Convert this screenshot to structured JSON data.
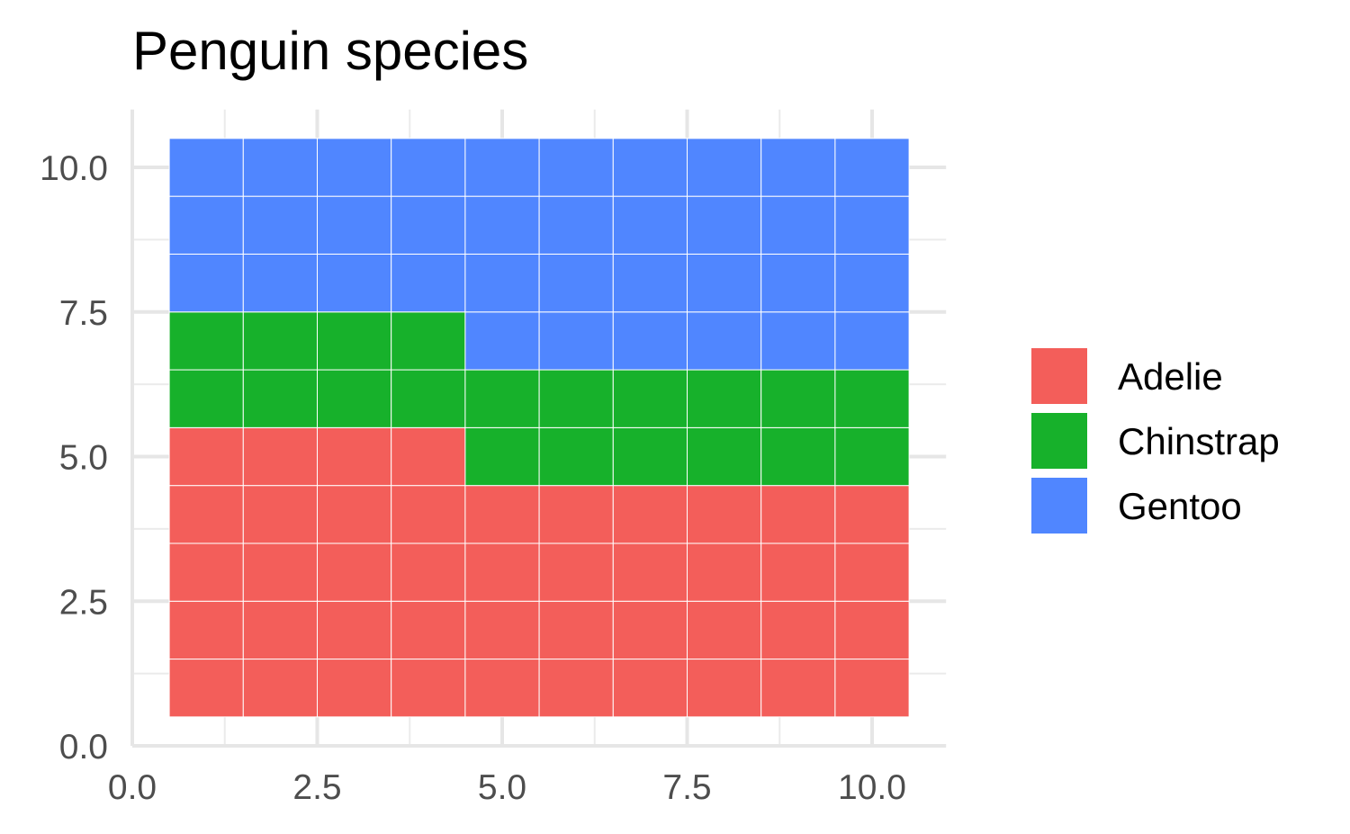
{
  "chart_data": {
    "type": "heatmap",
    "subtype": "waffle",
    "title": "Penguin species",
    "xlabel": "",
    "ylabel": "",
    "xlim": [
      0,
      11
    ],
    "ylim": [
      0,
      11
    ],
    "x_ticks": [
      "0.0",
      "2.5",
      "5.0",
      "7.5",
      "10.0"
    ],
    "y_ticks": [
      "0.0",
      "2.5",
      "5.0",
      "7.5",
      "10.0"
    ],
    "x_tick_values": [
      0,
      2.5,
      5,
      7.5,
      10
    ],
    "y_tick_values": [
      0,
      2.5,
      5,
      7.5,
      10
    ],
    "grid": true,
    "legend_position": "right",
    "grid_size": [
      10,
      10
    ],
    "colors": {
      "Adelie": "#F35E5A",
      "Chinstrap": "#17B12B",
      "Gentoo": "#5086FF"
    },
    "series": [
      {
        "name": "Adelie",
        "count": 44,
        "color": "#F35E5A"
      },
      {
        "name": "Chinstrap",
        "count": 20,
        "color": "#17B12B"
      },
      {
        "name": "Gentoo",
        "count": 36,
        "color": "#5086FF"
      }
    ],
    "columns": [
      {
        "x": 1,
        "tiles": [
          "Adelie",
          "Adelie",
          "Adelie",
          "Adelie",
          "Adelie",
          "Chinstrap",
          "Chinstrap",
          "Gentoo",
          "Gentoo",
          "Gentoo"
        ]
      },
      {
        "x": 2,
        "tiles": [
          "Adelie",
          "Adelie",
          "Adelie",
          "Adelie",
          "Adelie",
          "Chinstrap",
          "Chinstrap",
          "Gentoo",
          "Gentoo",
          "Gentoo"
        ]
      },
      {
        "x": 3,
        "tiles": [
          "Adelie",
          "Adelie",
          "Adelie",
          "Adelie",
          "Adelie",
          "Chinstrap",
          "Chinstrap",
          "Gentoo",
          "Gentoo",
          "Gentoo"
        ]
      },
      {
        "x": 4,
        "tiles": [
          "Adelie",
          "Adelie",
          "Adelie",
          "Adelie",
          "Adelie",
          "Chinstrap",
          "Chinstrap",
          "Gentoo",
          "Gentoo",
          "Gentoo"
        ]
      },
      {
        "x": 5,
        "tiles": [
          "Adelie",
          "Adelie",
          "Adelie",
          "Adelie",
          "Chinstrap",
          "Chinstrap",
          "Gentoo",
          "Gentoo",
          "Gentoo",
          "Gentoo"
        ]
      },
      {
        "x": 6,
        "tiles": [
          "Adelie",
          "Adelie",
          "Adelie",
          "Adelie",
          "Chinstrap",
          "Chinstrap",
          "Gentoo",
          "Gentoo",
          "Gentoo",
          "Gentoo"
        ]
      },
      {
        "x": 7,
        "tiles": [
          "Adelie",
          "Adelie",
          "Adelie",
          "Adelie",
          "Chinstrap",
          "Chinstrap",
          "Gentoo",
          "Gentoo",
          "Gentoo",
          "Gentoo"
        ]
      },
      {
        "x": 8,
        "tiles": [
          "Adelie",
          "Adelie",
          "Adelie",
          "Adelie",
          "Chinstrap",
          "Chinstrap",
          "Gentoo",
          "Gentoo",
          "Gentoo",
          "Gentoo"
        ]
      },
      {
        "x": 9,
        "tiles": [
          "Adelie",
          "Adelie",
          "Adelie",
          "Adelie",
          "Chinstrap",
          "Chinstrap",
          "Gentoo",
          "Gentoo",
          "Gentoo",
          "Gentoo"
        ]
      },
      {
        "x": 10,
        "tiles": [
          "Adelie",
          "Adelie",
          "Adelie",
          "Adelie",
          "Chinstrap",
          "Chinstrap",
          "Gentoo",
          "Gentoo",
          "Gentoo",
          "Gentoo"
        ]
      }
    ]
  }
}
